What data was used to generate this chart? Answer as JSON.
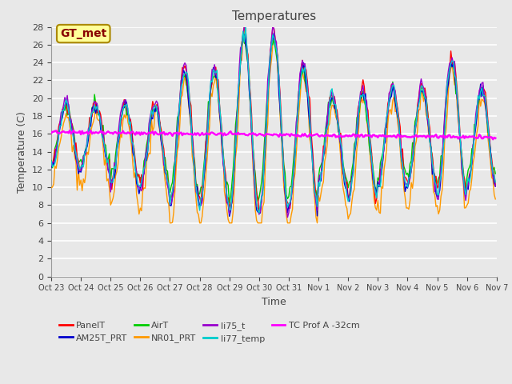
{
  "title": "Temperatures",
  "xlabel": "Time",
  "ylabel": "Temperature (C)",
  "ylim": [
    0,
    28
  ],
  "yticks": [
    0,
    2,
    4,
    6,
    8,
    10,
    12,
    14,
    16,
    18,
    20,
    22,
    24,
    26,
    28
  ],
  "xtick_labels": [
    "Oct 23",
    "Oct 24",
    "Oct 25",
    "Oct 26",
    "Oct 27",
    "Oct 28",
    "Oct 29",
    "Oct 30",
    "Oct 31",
    "Nov 1",
    "Nov 2",
    "Nov 3",
    "Nov 4",
    "Nov 5",
    "Nov 6",
    "Nov 7"
  ],
  "n_days": 15,
  "annotation_text": "GT_met",
  "annotation_bg": "#FFFF99",
  "annotation_border": "#AA8800",
  "annotation_text_color": "#880000",
  "series_colors": {
    "PanelT": "#FF0000",
    "AM25T_PRT": "#0000CC",
    "AirT": "#00CC00",
    "NR01_PRT": "#FF9900",
    "li75_t": "#9900CC",
    "li77_temp": "#00CCCC",
    "TC Prof A -32cm": "#FF00FF"
  },
  "bg_color": "#E8E8E8",
  "plot_bg": "#E8E8E8",
  "grid_color": "#FFFFFF",
  "figsize": [
    6.4,
    4.8
  ],
  "dpi": 100
}
